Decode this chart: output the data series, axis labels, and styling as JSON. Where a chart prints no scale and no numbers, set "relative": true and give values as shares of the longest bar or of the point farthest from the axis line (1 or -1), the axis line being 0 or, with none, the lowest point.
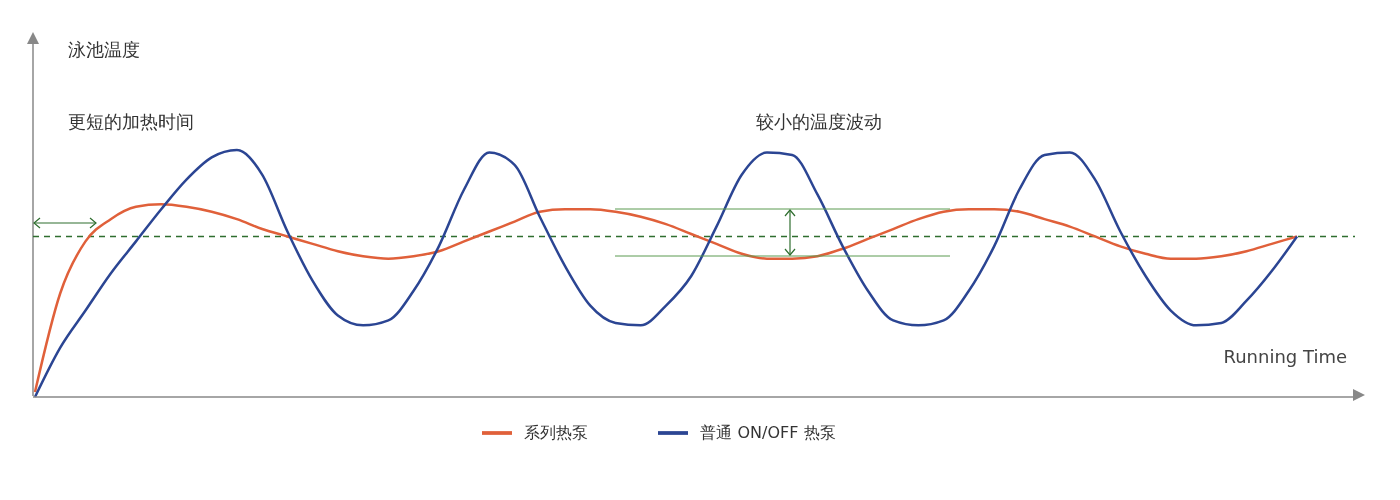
{
  "chart_data": {
    "type": "line",
    "relative": true,
    "xlabel": "Running Time",
    "annotations": [
      "泳池温度",
      "更短的加热时间",
      "较小的温度波动"
    ],
    "categories": [
      null,
      null,
      null,
      null,
      null,
      null,
      null,
      null,
      null,
      null,
      null,
      null,
      null,
      null,
      null,
      null,
      null,
      null,
      null,
      null,
      null,
      null,
      null,
      null,
      null,
      null,
      null,
      null,
      null,
      null,
      null,
      null,
      null,
      null,
      null,
      null,
      null,
      null,
      null,
      null,
      null,
      null,
      null,
      null,
      null,
      null,
      null,
      null,
      null,
      null,
      null
    ],
    "series": [
      {
        "name": "系列热泵",
        "color": "#e0603a",
        "values": [
          0.02,
          0.42,
          0.63,
          0.72,
          0.77,
          0.78,
          0.77,
          0.75,
          0.72,
          0.68,
          0.65,
          0.62,
          0.59,
          0.57,
          0.56,
          0.57,
          0.59,
          0.63,
          0.67,
          0.71,
          0.75,
          0.76,
          0.76,
          0.75,
          0.73,
          0.7,
          0.66,
          0.62,
          0.58,
          0.56,
          0.56,
          0.57,
          0.6,
          0.64,
          0.68,
          0.72,
          0.75,
          0.76,
          0.76,
          0.75,
          0.72,
          0.69,
          0.65,
          0.61,
          0.58,
          0.56,
          0.56,
          0.57,
          0.59,
          0.62,
          0.65
        ]
      },
      {
        "name": "普通 ON/OFF 热泵",
        "color": "#2b4593",
        "values": [
          0,
          0.2,
          0.35,
          0.5,
          0.63,
          0.76,
          0.88,
          0.97,
          1.0,
          0.9,
          0.67,
          0.47,
          0.33,
          0.29,
          0.31,
          0.43,
          0.61,
          0.84,
          0.99,
          0.94,
          0.73,
          0.53,
          0.37,
          0.3,
          0.29,
          0.37,
          0.49,
          0.69,
          0.9,
          0.99,
          0.98,
          0.82,
          0.61,
          0.43,
          0.31,
          0.29,
          0.31,
          0.43,
          0.61,
          0.84,
          0.98,
          0.99,
          0.88,
          0.67,
          0.49,
          0.35,
          0.29,
          0.3,
          0.39,
          0.51,
          0.65
        ]
      }
    ],
    "ref_lines": [
      {
        "axis": "y",
        "value": 0.65,
        "color": "#2f6e2f",
        "line_style": "dashed"
      }
    ],
    "legend": "bottom",
    "grid": false,
    "marker": "none",
    "line_style": "solid"
  }
}
